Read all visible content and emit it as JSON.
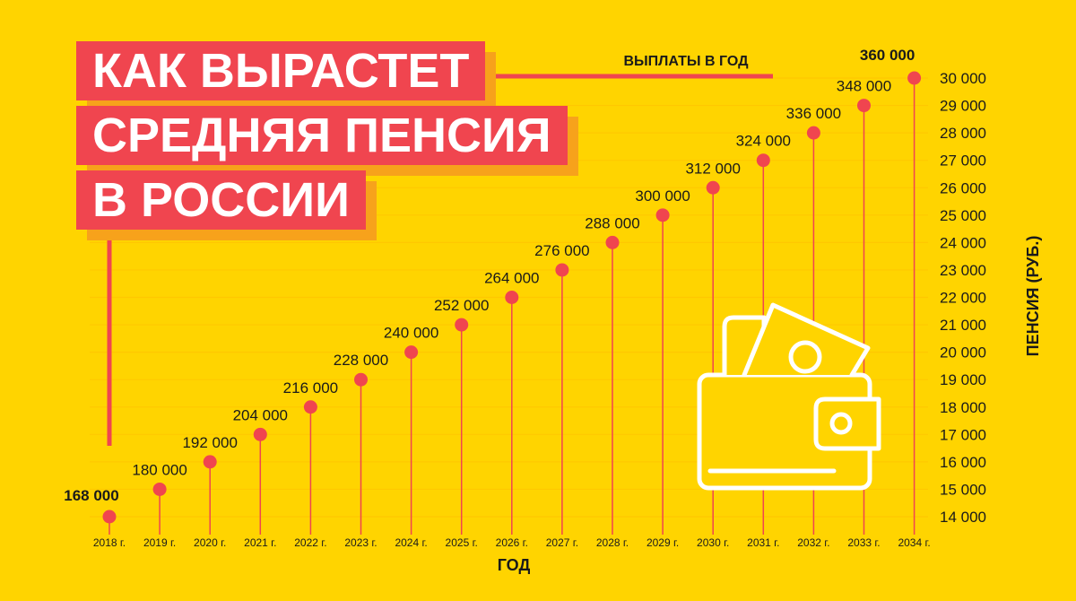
{
  "title_lines": [
    "КАК ВЫРАСТЕТ",
    "СРЕДНЯЯ ПЕНСИЯ",
    "В РОССИИ"
  ],
  "colors": {
    "background": "#FFD400",
    "accent": "#F0454F",
    "shadow": "#F7A21B",
    "grid": "#FFC800",
    "icon": "#FFFFFF"
  },
  "icon": "wallet-with-money-icon",
  "chart_data": {
    "type": "line",
    "markers_only": true,
    "xlabel": "ГОД",
    "ylabel": "ПЕНСИЯ (РУБ.)",
    "y_axis_side": "right",
    "ylim": [
      14000,
      30000
    ],
    "y_ticks": [
      "14 000",
      "15 000",
      "16 000",
      "17 000",
      "18 000",
      "19 000",
      "20 000",
      "21 000",
      "22 000",
      "23 000",
      "24 000",
      "25 000",
      "26 000",
      "27 000",
      "28 000",
      "29 000",
      "30 000"
    ],
    "x_tick_labels": [
      "2018 г.",
      "2019 г.",
      "2020 г.",
      "2021 г.",
      "2022 г.",
      "2023 г.",
      "2024 г.",
      "2025 г.",
      "2026 г.",
      "2027 г.",
      "2028 г.",
      "2029 г.",
      "2030 г.",
      "2031 г.",
      "2032 г.",
      "2033 г.",
      "2034 г."
    ],
    "series_label": "ВЫПЛАТЫ В ГОД",
    "pension_values": [
      14000,
      15000,
      16000,
      17000,
      18000,
      19000,
      20000,
      21000,
      22000,
      23000,
      24000,
      25000,
      26000,
      27000,
      28000,
      29000,
      30000
    ],
    "annual_labels": [
      "168 000",
      "180 000",
      "192 000",
      "204 000",
      "216 000",
      "228 000",
      "240 000",
      "252 000",
      "264 000",
      "276 000",
      "288 000",
      "300 000",
      "312 000",
      "324 000",
      "336 000",
      "348 000",
      "360 000"
    ],
    "bold_labels": [
      0,
      16
    ],
    "grid": true
  }
}
